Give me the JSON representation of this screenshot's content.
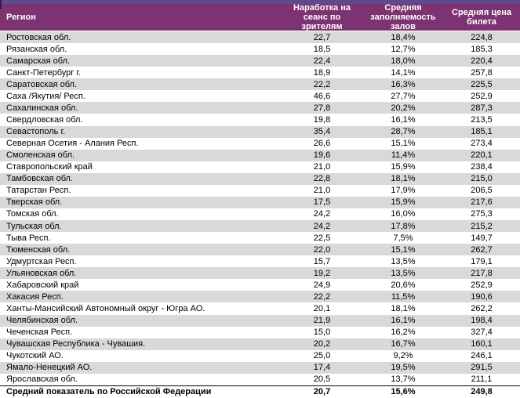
{
  "theme": {
    "top_strip_color": "#5E4A8C",
    "header_bg": "#7D3372",
    "header_text": "#FFFFFF",
    "row_bg": "#FFFFFF",
    "row_alt_bg": "#D9D9D9",
    "text_color": "#000000",
    "summary_border_color": "#000000"
  },
  "table": {
    "columns": [
      "Регион",
      "Наработка на сеанс по зрителям",
      "Средняя заполняемость залов",
      "Средняя цена билета"
    ],
    "rows": [
      {
        "region": "Ростовская обл.",
        "per_session": "22,7",
        "occupancy": "18,4%",
        "price": "224,8"
      },
      {
        "region": "Рязанская обл.",
        "per_session": "18,5",
        "occupancy": "12,7%",
        "price": "185,3"
      },
      {
        "region": "Самарская обл.",
        "per_session": "22,4",
        "occupancy": "18,0%",
        "price": "220,4"
      },
      {
        "region": "Санкт-Петербург г.",
        "per_session": "18,9",
        "occupancy": "14,1%",
        "price": "257,8"
      },
      {
        "region": "Саратовская обл.",
        "per_session": "22,2",
        "occupancy": "16,3%",
        "price": "225,5"
      },
      {
        "region": "Саха /Якутия/ Респ.",
        "per_session": "46,6",
        "occupancy": "27,7%",
        "price": "252,9"
      },
      {
        "region": "Сахалинская обл.",
        "per_session": "27,8",
        "occupancy": "20,2%",
        "price": "287,3"
      },
      {
        "region": "Свердловская обл.",
        "per_session": "19,8",
        "occupancy": "16,1%",
        "price": "213,5"
      },
      {
        "region": "Севастополь г.",
        "per_session": "35,4",
        "occupancy": "28,7%",
        "price": "185,1"
      },
      {
        "region": "Северная Осетия - Алания Респ.",
        "per_session": "26,6",
        "occupancy": "15,1%",
        "price": "273,4"
      },
      {
        "region": "Смоленская обл.",
        "per_session": "19,6",
        "occupancy": "11,4%",
        "price": "220,1"
      },
      {
        "region": "Ставропольский край",
        "per_session": "21,0",
        "occupancy": "15,9%",
        "price": "238,4"
      },
      {
        "region": "Тамбовская обл.",
        "per_session": "22,8",
        "occupancy": "18,1%",
        "price": "215,0"
      },
      {
        "region": "Татарстан Респ.",
        "per_session": "21,0",
        "occupancy": "17,9%",
        "price": "206,5"
      },
      {
        "region": "Тверская обл.",
        "per_session": "17,5",
        "occupancy": "15,9%",
        "price": "217,6"
      },
      {
        "region": "Томская обл.",
        "per_session": "24,2",
        "occupancy": "16,0%",
        "price": "275,3"
      },
      {
        "region": "Тульская обл.",
        "per_session": "24,2",
        "occupancy": "17,8%",
        "price": "215,2"
      },
      {
        "region": "Тыва Респ.",
        "per_session": "22,5",
        "occupancy": "7,5%",
        "price": "149,7"
      },
      {
        "region": "Тюменская обл.",
        "per_session": "22,0",
        "occupancy": "15,1%",
        "price": "262,7"
      },
      {
        "region": "Удмуртская Респ.",
        "per_session": "15,7",
        "occupancy": "13,5%",
        "price": "179,1"
      },
      {
        "region": "Ульяновская обл.",
        "per_session": "19,2",
        "occupancy": "13,5%",
        "price": "217,8"
      },
      {
        "region": "Хабаровский край",
        "per_session": "24,9",
        "occupancy": "20,6%",
        "price": "252,9"
      },
      {
        "region": "Хакасия Респ.",
        "per_session": "22,2",
        "occupancy": "11,5%",
        "price": "190,6"
      },
      {
        "region": "Ханты-Мансийский Автономный округ - Югра АО.",
        "per_session": "20,1",
        "occupancy": "18,1%",
        "price": "262,2"
      },
      {
        "region": "Челябинская обл.",
        "per_session": "21,9",
        "occupancy": "16,1%",
        "price": "198,4"
      },
      {
        "region": "Чеченская Респ.",
        "per_session": "15,0",
        "occupancy": "16,2%",
        "price": "327,4"
      },
      {
        "region": "Чувашская Республика - Чувашия.",
        "per_session": "20,2",
        "occupancy": "16,7%",
        "price": "160,1"
      },
      {
        "region": "Чукотский АО.",
        "per_session": "25,0",
        "occupancy": "9,2%",
        "price": "246,1"
      },
      {
        "region": "Ямало-Ненецкий АО.",
        "per_session": "17,4",
        "occupancy": "19,5%",
        "price": "291,5"
      },
      {
        "region": "Ярославская обл.",
        "per_session": "20,5",
        "occupancy": "13,7%",
        "price": "211,1"
      }
    ],
    "summary_row": {
      "region": "Средний показатель по Российской Федерации",
      "per_session": "20,7",
      "occupancy": "15,6%",
      "price": "249,8"
    }
  }
}
